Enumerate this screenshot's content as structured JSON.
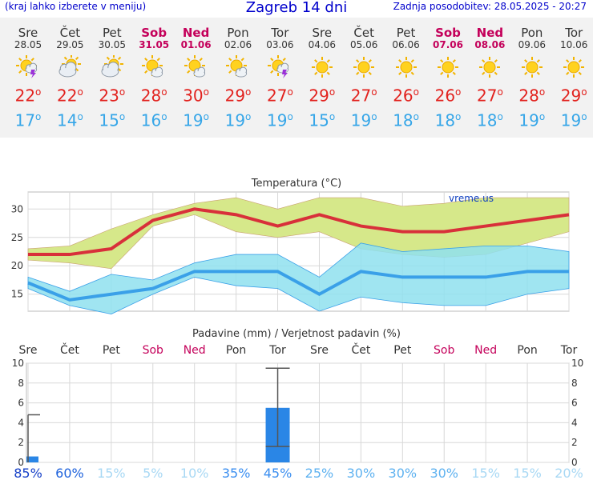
{
  "header": {
    "hint": "(kraj lahko izberete v meniju)",
    "title": "Zagreb 14 dni",
    "updated": "Zadnja posodobitev: 28.05.2025 - 20:27"
  },
  "days": [
    {
      "name": "Sre",
      "date": "28.05",
      "weekend": false,
      "icon": "partly-sunny-thunderstorm-icon",
      "max": "22",
      "min": "17"
    },
    {
      "name": "Čet",
      "date": "29.05",
      "weekend": false,
      "icon": "partly-cloudy-icon",
      "max": "22",
      "min": "14"
    },
    {
      "name": "Pet",
      "date": "30.05",
      "weekend": false,
      "icon": "partly-cloudy-icon",
      "max": "23",
      "min": "15"
    },
    {
      "name": "Sob",
      "date": "31.05",
      "weekend": true,
      "icon": "sun-cloud-icon",
      "max": "28",
      "min": "16"
    },
    {
      "name": "Ned",
      "date": "01.06",
      "weekend": true,
      "icon": "sun-cloud-icon",
      "max": "30",
      "min": "19"
    },
    {
      "name": "Pon",
      "date": "02.06",
      "weekend": false,
      "icon": "sun-cloud-icon",
      "max": "29",
      "min": "19"
    },
    {
      "name": "Tor",
      "date": "03.06",
      "weekend": false,
      "icon": "sun-thunderstorm-icon",
      "max": "27",
      "min": "19"
    },
    {
      "name": "Sre",
      "date": "04.06",
      "weekend": false,
      "icon": "sun-icon",
      "max": "29",
      "min": "15"
    },
    {
      "name": "Čet",
      "date": "05.06",
      "weekend": false,
      "icon": "sun-icon",
      "max": "27",
      "min": "19"
    },
    {
      "name": "Pet",
      "date": "06.06",
      "weekend": false,
      "icon": "sun-icon",
      "max": "26",
      "min": "18"
    },
    {
      "name": "Sob",
      "date": "07.06",
      "weekend": true,
      "icon": "sun-icon",
      "max": "26",
      "min": "18"
    },
    {
      "name": "Ned",
      "date": "08.06",
      "weekend": true,
      "icon": "sun-icon",
      "max": "27",
      "min": "18"
    },
    {
      "name": "Pon",
      "date": "09.06",
      "weekend": false,
      "icon": "sun-icon",
      "max": "28",
      "min": "19"
    },
    {
      "name": "Tor",
      "date": "10.06",
      "weekend": false,
      "icon": "sun-icon",
      "max": "29",
      "min": "19"
    }
  ],
  "colors": {
    "max": "#e2221e",
    "min": "#36a6e8",
    "weekend": "#c4005a",
    "max_band": "#d6e88a",
    "min_band": "#8fe0ee",
    "overlap": "#88d48a",
    "line_max": "#d8303a",
    "line_min": "#3aa0e8",
    "precip": "#2a86e6"
  },
  "chart_data": [
    {
      "type": "line",
      "title": "Temperatura (°C)",
      "watermark": "vreme.us",
      "yticks": [
        "15",
        "20",
        "25",
        "30"
      ],
      "ylim": [
        12,
        33
      ],
      "grid": true,
      "series": [
        {
          "values": [
            22,
            22,
            23,
            28,
            30,
            29,
            27,
            29,
            27,
            26,
            26,
            27,
            28,
            29
          ]
        },
        {
          "values": [
            17,
            14,
            15,
            16,
            19,
            19,
            19,
            15,
            19,
            18,
            18,
            18,
            19,
            19
          ]
        },
        {
          "values": [
            23,
            23.5,
            26.5,
            29,
            31,
            32,
            30,
            32,
            32,
            30.5,
            31,
            32,
            32,
            32
          ]
        },
        {
          "values": [
            21,
            20.5,
            19.5,
            27,
            29,
            26,
            25,
            26,
            23,
            22,
            21.5,
            22,
            24,
            26
          ]
        },
        {
          "values": [
            18,
            15.5,
            18.5,
            17.5,
            20.5,
            22,
            22,
            18,
            24,
            22.5,
            23,
            23.5,
            23.5,
            22.5
          ]
        },
        {
          "values": [
            16,
            13,
            11.5,
            15,
            18,
            16.5,
            16,
            12,
            14.5,
            13.5,
            13,
            13,
            15,
            16
          ]
        }
      ]
    },
    {
      "type": "bar",
      "title": "Padavine (mm) / Verjetnost padavin (%)",
      "categories": [
        "Sre",
        "Čet",
        "Pet",
        "Sob",
        "Ned",
        "Pon",
        "Tor",
        "Sre",
        "Čet",
        "Pet",
        "Sob",
        "Ned",
        "Pon",
        "Tor"
      ],
      "values": [
        0.6,
        0,
        0,
        0,
        0,
        0,
        5.5,
        0,
        0,
        0,
        0,
        0,
        0,
        0
      ],
      "error_high": [
        4.8,
        0,
        0,
        0,
        0,
        0,
        9.5,
        0,
        0,
        0,
        0,
        0,
        0,
        0
      ],
      "error_low": [
        0,
        0,
        0,
        0,
        0,
        0,
        1.6,
        0,
        0,
        0,
        0,
        0,
        0,
        0
      ],
      "ylim": [
        0,
        10
      ],
      "yticks": [
        "0",
        "2",
        "4",
        "6",
        "8",
        "10"
      ],
      "probabilities": [
        "85%",
        "60%",
        "15%",
        "5%",
        "10%",
        "35%",
        "45%",
        "25%",
        "30%",
        "30%",
        "30%",
        "15%",
        "15%",
        "20%"
      ],
      "probability_values": [
        85,
        60,
        15,
        5,
        10,
        35,
        45,
        25,
        30,
        30,
        30,
        15,
        15,
        20
      ]
    }
  ]
}
